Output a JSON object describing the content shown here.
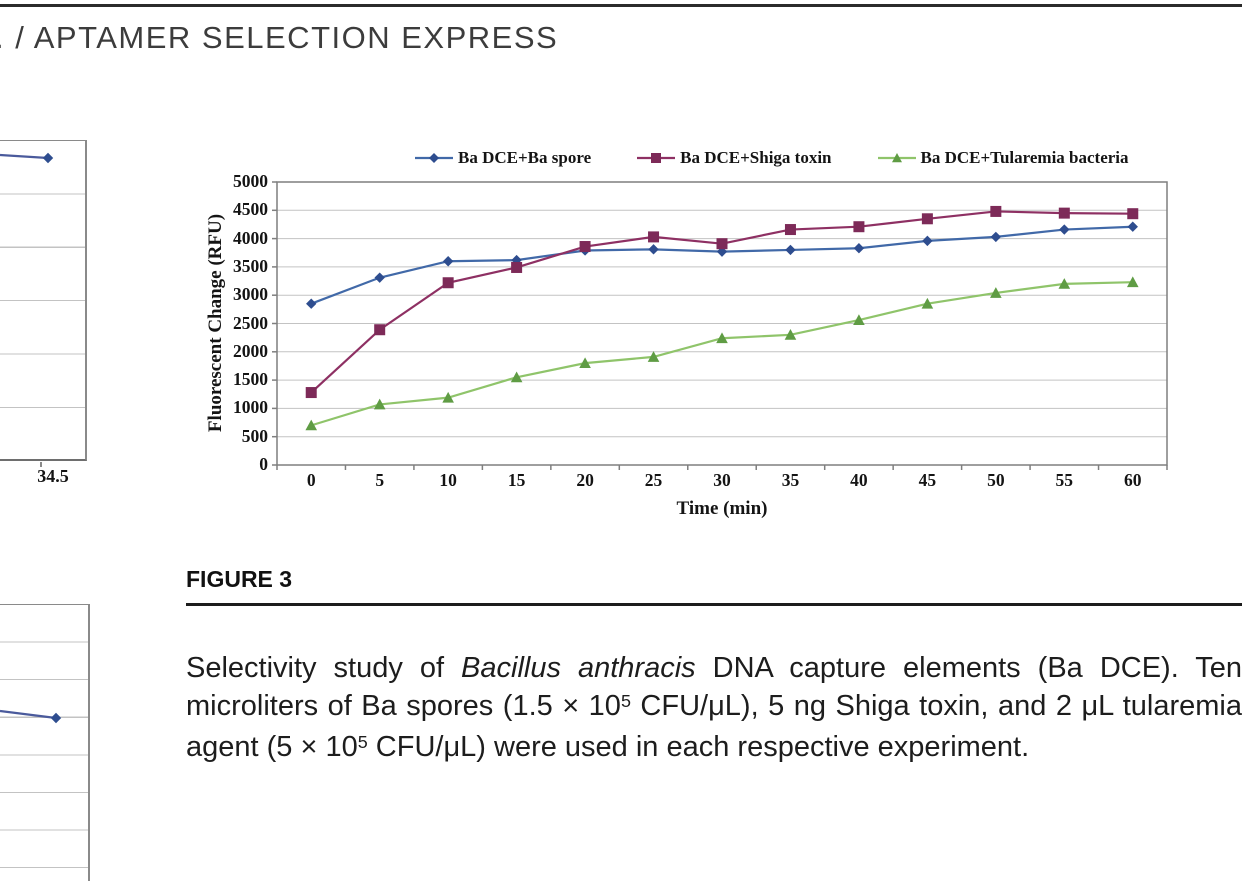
{
  "header": {
    "running_title": ". / APTAMER SELECTION EXPRESS"
  },
  "figure": {
    "label": "FIGURE 3",
    "caption_segments": [
      {
        "text": "Selectivity study of ",
        "style": "normal"
      },
      {
        "text": "Bacillus anthracis",
        "style": "italic"
      },
      {
        "text": " DNA capture elements (Ba DCE). Ten microliters of Ba spores (1.5 × 10",
        "style": "normal"
      },
      {
        "text": "5",
        "style": "sup"
      },
      {
        "text": " CFU/μL), 5 ng Shiga toxin, and 2 μL tularemia agent (5 × 10",
        "style": "normal"
      },
      {
        "text": "5",
        "style": "sup"
      },
      {
        "text": " CFU/μL) were used in each respective experiment.",
        "style": "normal"
      }
    ]
  },
  "chart_data": {
    "type": "line",
    "x": [
      0,
      5,
      10,
      15,
      20,
      25,
      30,
      35,
      40,
      45,
      50,
      55,
      60
    ],
    "xlabel": "Time (min)",
    "ylabel": "Fluorescent Change (RFU)",
    "ylim": [
      0,
      5000
    ],
    "ytick_step": 500,
    "grid": "horizontal",
    "legend_position": "top",
    "colors": {
      "grid": "#c3c3c3",
      "border": "#7f7f7f",
      "tick": "#7f7f7f"
    },
    "series": [
      {
        "name": "Ba DCE+Ba spore",
        "marker": "diamond",
        "color": "#4169a8",
        "marker_color": "#2e4d8f",
        "values": [
          2850,
          3310,
          3600,
          3620,
          3790,
          3810,
          3770,
          3800,
          3830,
          3960,
          4030,
          4160,
          4210
        ]
      },
      {
        "name": "Ba DCE+Shiga toxin",
        "marker": "square",
        "color": "#8e3063",
        "marker_color": "#7d2a58",
        "values": [
          1280,
          2390,
          3220,
          3490,
          3860,
          4030,
          3910,
          4160,
          4210,
          4350,
          4480,
          4450,
          4440
        ]
      },
      {
        "name": "Ba DCE+Tularemia bacteria",
        "marker": "triangle",
        "color": "#8fc46a",
        "marker_color": "#5f9c44",
        "values": [
          700,
          1070,
          1190,
          1550,
          1800,
          1910,
          2240,
          2300,
          2560,
          2850,
          3040,
          3200,
          3230
        ]
      }
    ]
  },
  "left_fragments": {
    "top": {
      "xtick_label": "34.5",
      "series_color": "#2e4d8f",
      "line_color": "#4a5a9c"
    },
    "bottom": {
      "series_color": "#2e4d8f",
      "line_color": "#4a5a9c"
    }
  }
}
